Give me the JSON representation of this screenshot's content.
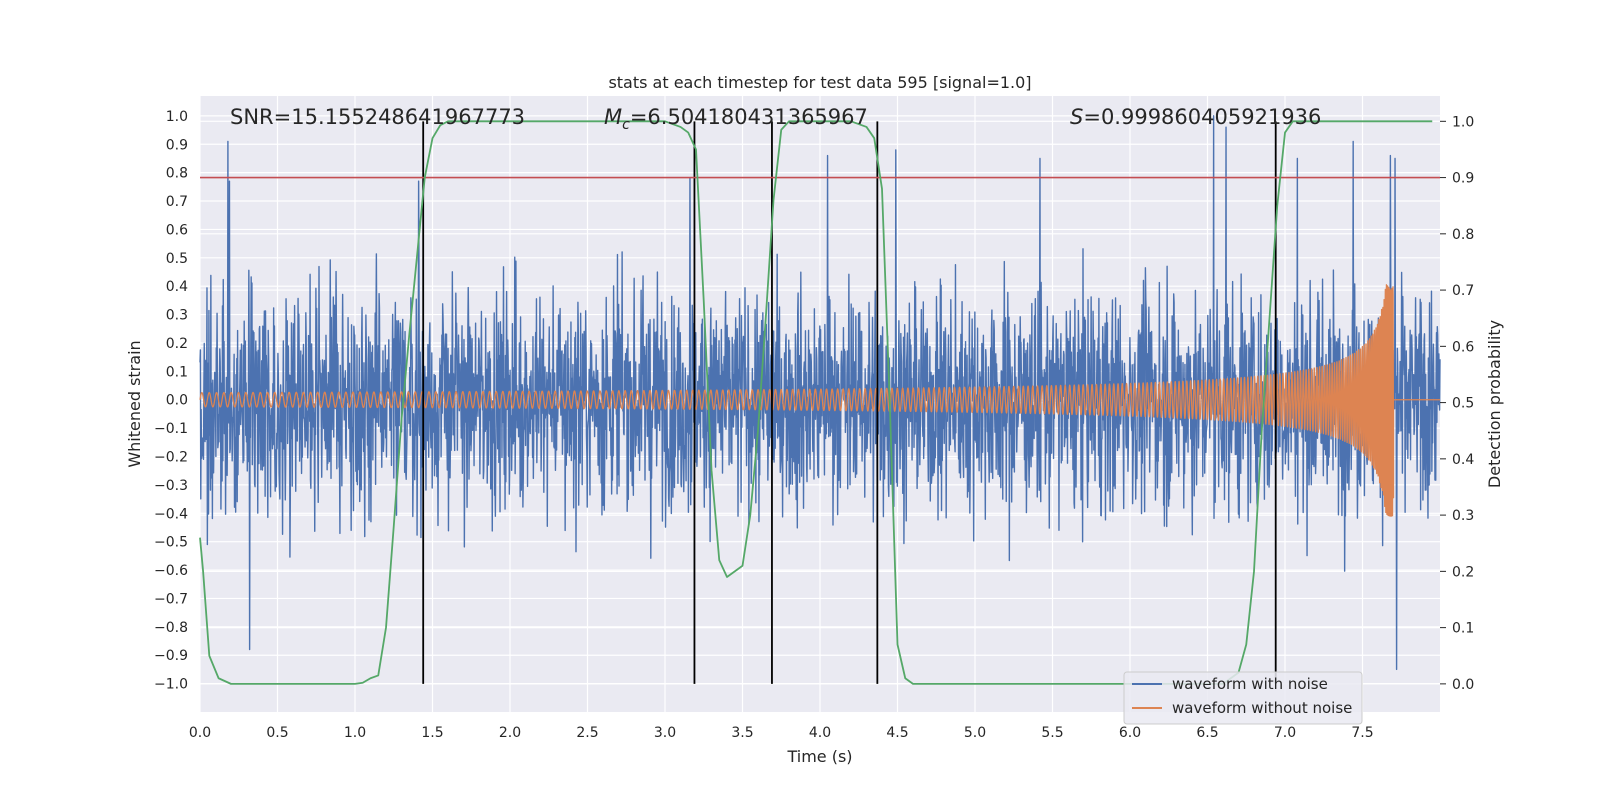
{
  "chart_data": {
    "type": "line",
    "title": "stats at each timestep for test data 595 [signal=1.0]",
    "xlabel": "Time (s)",
    "ylabel_left": "Whitened strain",
    "ylabel_right": "Detection probability",
    "xlim": [
      0.0,
      8.0
    ],
    "ylim_left": [
      -1.1,
      1.07
    ],
    "ylim_right": [
      -0.05,
      1.045
    ],
    "grid": true,
    "x_ticks": [
      "0.0",
      "0.5",
      "1.0",
      "1.5",
      "2.0",
      "2.5",
      "3.0",
      "3.5",
      "4.0",
      "4.5",
      "5.0",
      "5.5",
      "6.0",
      "6.5",
      "7.0",
      "7.5"
    ],
    "y_ticks_left": [
      "−1.0",
      "−0.9",
      "−0.8",
      "−0.7",
      "−0.6",
      "−0.5",
      "−0.4",
      "−0.3",
      "−0.2",
      "−0.1",
      "0.0",
      "0.1",
      "0.2",
      "0.3",
      "0.4",
      "0.5",
      "0.6",
      "0.7",
      "0.8",
      "0.9",
      "1.0"
    ],
    "y_ticks_right": [
      "0.0",
      "0.1",
      "0.2",
      "0.3",
      "0.4",
      "0.5",
      "0.6",
      "0.7",
      "0.8",
      "0.9",
      "1.0"
    ],
    "annotations": {
      "snr": "SNR=15.155248641967773",
      "mc_symbol": "M",
      "mc_sub": "c",
      "mc_value": "=6.504180431365967",
      "s_symbol": "S",
      "s_value": "=0.999860405921936"
    },
    "threshold_line": {
      "axis": "right",
      "value": 0.9,
      "color": "#c44e52"
    },
    "vertical_lines_x": [
      1.44,
      3.19,
      3.69,
      4.37,
      6.94
    ],
    "series": [
      {
        "name": "waveform with noise",
        "axis": "left",
        "color": "#4c72b0",
        "kind": "noise",
        "typical_envelope": 0.45,
        "peaks": [
          [
            0.18,
            0.91
          ],
          [
            0.19,
            0.77
          ],
          [
            0.32,
            -0.88
          ],
          [
            1.41,
            0.77
          ],
          [
            3.16,
            0.78
          ],
          [
            4.05,
            0.86
          ],
          [
            4.49,
            0.88
          ],
          [
            5.42,
            0.85
          ],
          [
            6.54,
            1.0
          ],
          [
            6.62,
            0.96
          ],
          [
            7.08,
            0.85
          ],
          [
            7.44,
            0.91
          ],
          [
            7.68,
            0.86
          ],
          [
            7.72,
            -0.95
          ],
          [
            7.71,
            0.85
          ]
        ]
      },
      {
        "name": "waveform without noise",
        "axis": "left",
        "color": "#dd8452",
        "kind": "chirp",
        "amplitude_start": 0.025,
        "amplitude_end": 0.41,
        "end_time": 7.7,
        "freq_start_hz": 21,
        "freq_end_hz": 140,
        "post_merger_value": 0.0
      },
      {
        "name": "detection probability",
        "axis": "right",
        "color": "#55a868",
        "x": [
          0.0,
          0.02,
          0.06,
          0.12,
          0.2,
          0.3,
          0.5,
          0.8,
          1.0,
          1.05,
          1.1,
          1.15,
          1.2,
          1.25,
          1.3,
          1.35,
          1.4,
          1.45,
          1.5,
          1.55,
          1.6,
          1.8,
          3.0,
          3.1,
          3.15,
          3.2,
          3.25,
          3.3,
          3.35,
          3.4,
          3.45,
          3.5,
          3.55,
          3.6,
          3.65,
          3.7,
          3.75,
          3.8,
          4.2,
          4.3,
          4.35,
          4.4,
          4.45,
          4.5,
          4.55,
          4.6,
          4.7,
          5.0,
          6.5,
          6.6,
          6.7,
          6.75,
          6.8,
          6.85,
          6.9,
          6.95,
          7.0,
          7.05,
          7.1,
          7.3,
          7.95
        ],
        "y": [
          0.26,
          0.2,
          0.05,
          0.01,
          0.0,
          0.0,
          0.0,
          0.0,
          0.0,
          0.002,
          0.01,
          0.015,
          0.1,
          0.28,
          0.47,
          0.62,
          0.76,
          0.9,
          0.97,
          0.993,
          1.0,
          1.0,
          1.0,
          0.99,
          0.98,
          0.95,
          0.68,
          0.38,
          0.22,
          0.19,
          0.2,
          0.21,
          0.3,
          0.45,
          0.65,
          0.86,
          0.985,
          1.0,
          1.0,
          0.99,
          0.97,
          0.88,
          0.5,
          0.07,
          0.01,
          0.0,
          0.0,
          0.0,
          0.0,
          0.0,
          0.02,
          0.07,
          0.2,
          0.45,
          0.65,
          0.85,
          0.98,
          1.0,
          1.0,
          1.0,
          1.0
        ]
      }
    ],
    "legend": {
      "position": "lower-right",
      "entries": [
        {
          "label": "waveform with noise",
          "color": "#4c72b0"
        },
        {
          "label": "waveform without noise",
          "color": "#dd8452"
        }
      ]
    }
  }
}
